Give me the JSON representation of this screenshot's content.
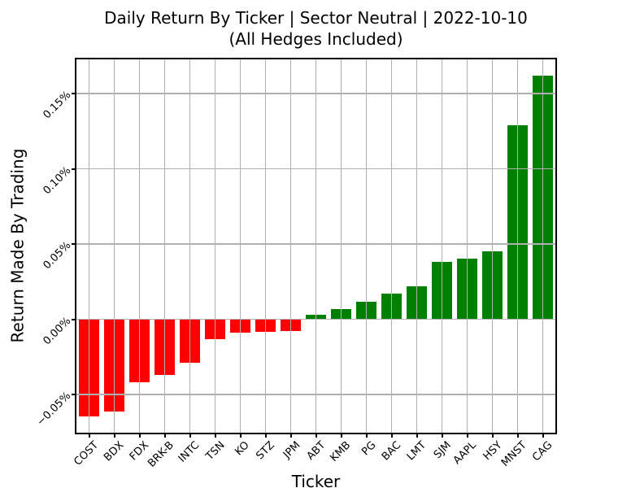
{
  "chart_data": {
    "type": "bar",
    "title": "Daily Return By Ticker | Sector Neutral | 2022-10-10",
    "subtitle": "(All Hedges Included)",
    "xlabel": "Ticker",
    "ylabel": "Return Made By Trading",
    "categories": [
      "COST",
      "BDX",
      "FDX",
      "BRK-B",
      "INTC",
      "TSN",
      "KO",
      "STZ",
      "JPM",
      "ABT",
      "KMB",
      "PG",
      "BAC",
      "LMT",
      "SJM",
      "AAPL",
      "HSY",
      "MNST",
      "CAG"
    ],
    "values_pct": [
      -0.0648,
      -0.0614,
      -0.0419,
      -0.0372,
      -0.0288,
      -0.0131,
      -0.0091,
      -0.0085,
      -0.0077,
      0.0032,
      0.0069,
      0.0118,
      0.0172,
      0.0217,
      0.0383,
      0.0401,
      0.0451,
      0.1289,
      0.1621
    ],
    "yticks": [
      {
        "label": "−0.05%",
        "value": -0.05
      },
      {
        "label": "0.00%",
        "value": 0.0
      },
      {
        "label": "0.05%",
        "value": 0.05
      },
      {
        "label": "0.10%",
        "value": 0.1
      },
      {
        "label": "0.15%",
        "value": 0.15
      }
    ],
    "ylim_pct": [
      -0.0754,
      0.1727
    ],
    "grid": true,
    "legend": "none",
    "colors": {
      "positive_bar": "#008000",
      "negative_bar": "#ff0000",
      "grid": "#b0b0b0",
      "spine": "#000000",
      "text": "#000000",
      "background": "#ffffff"
    }
  }
}
